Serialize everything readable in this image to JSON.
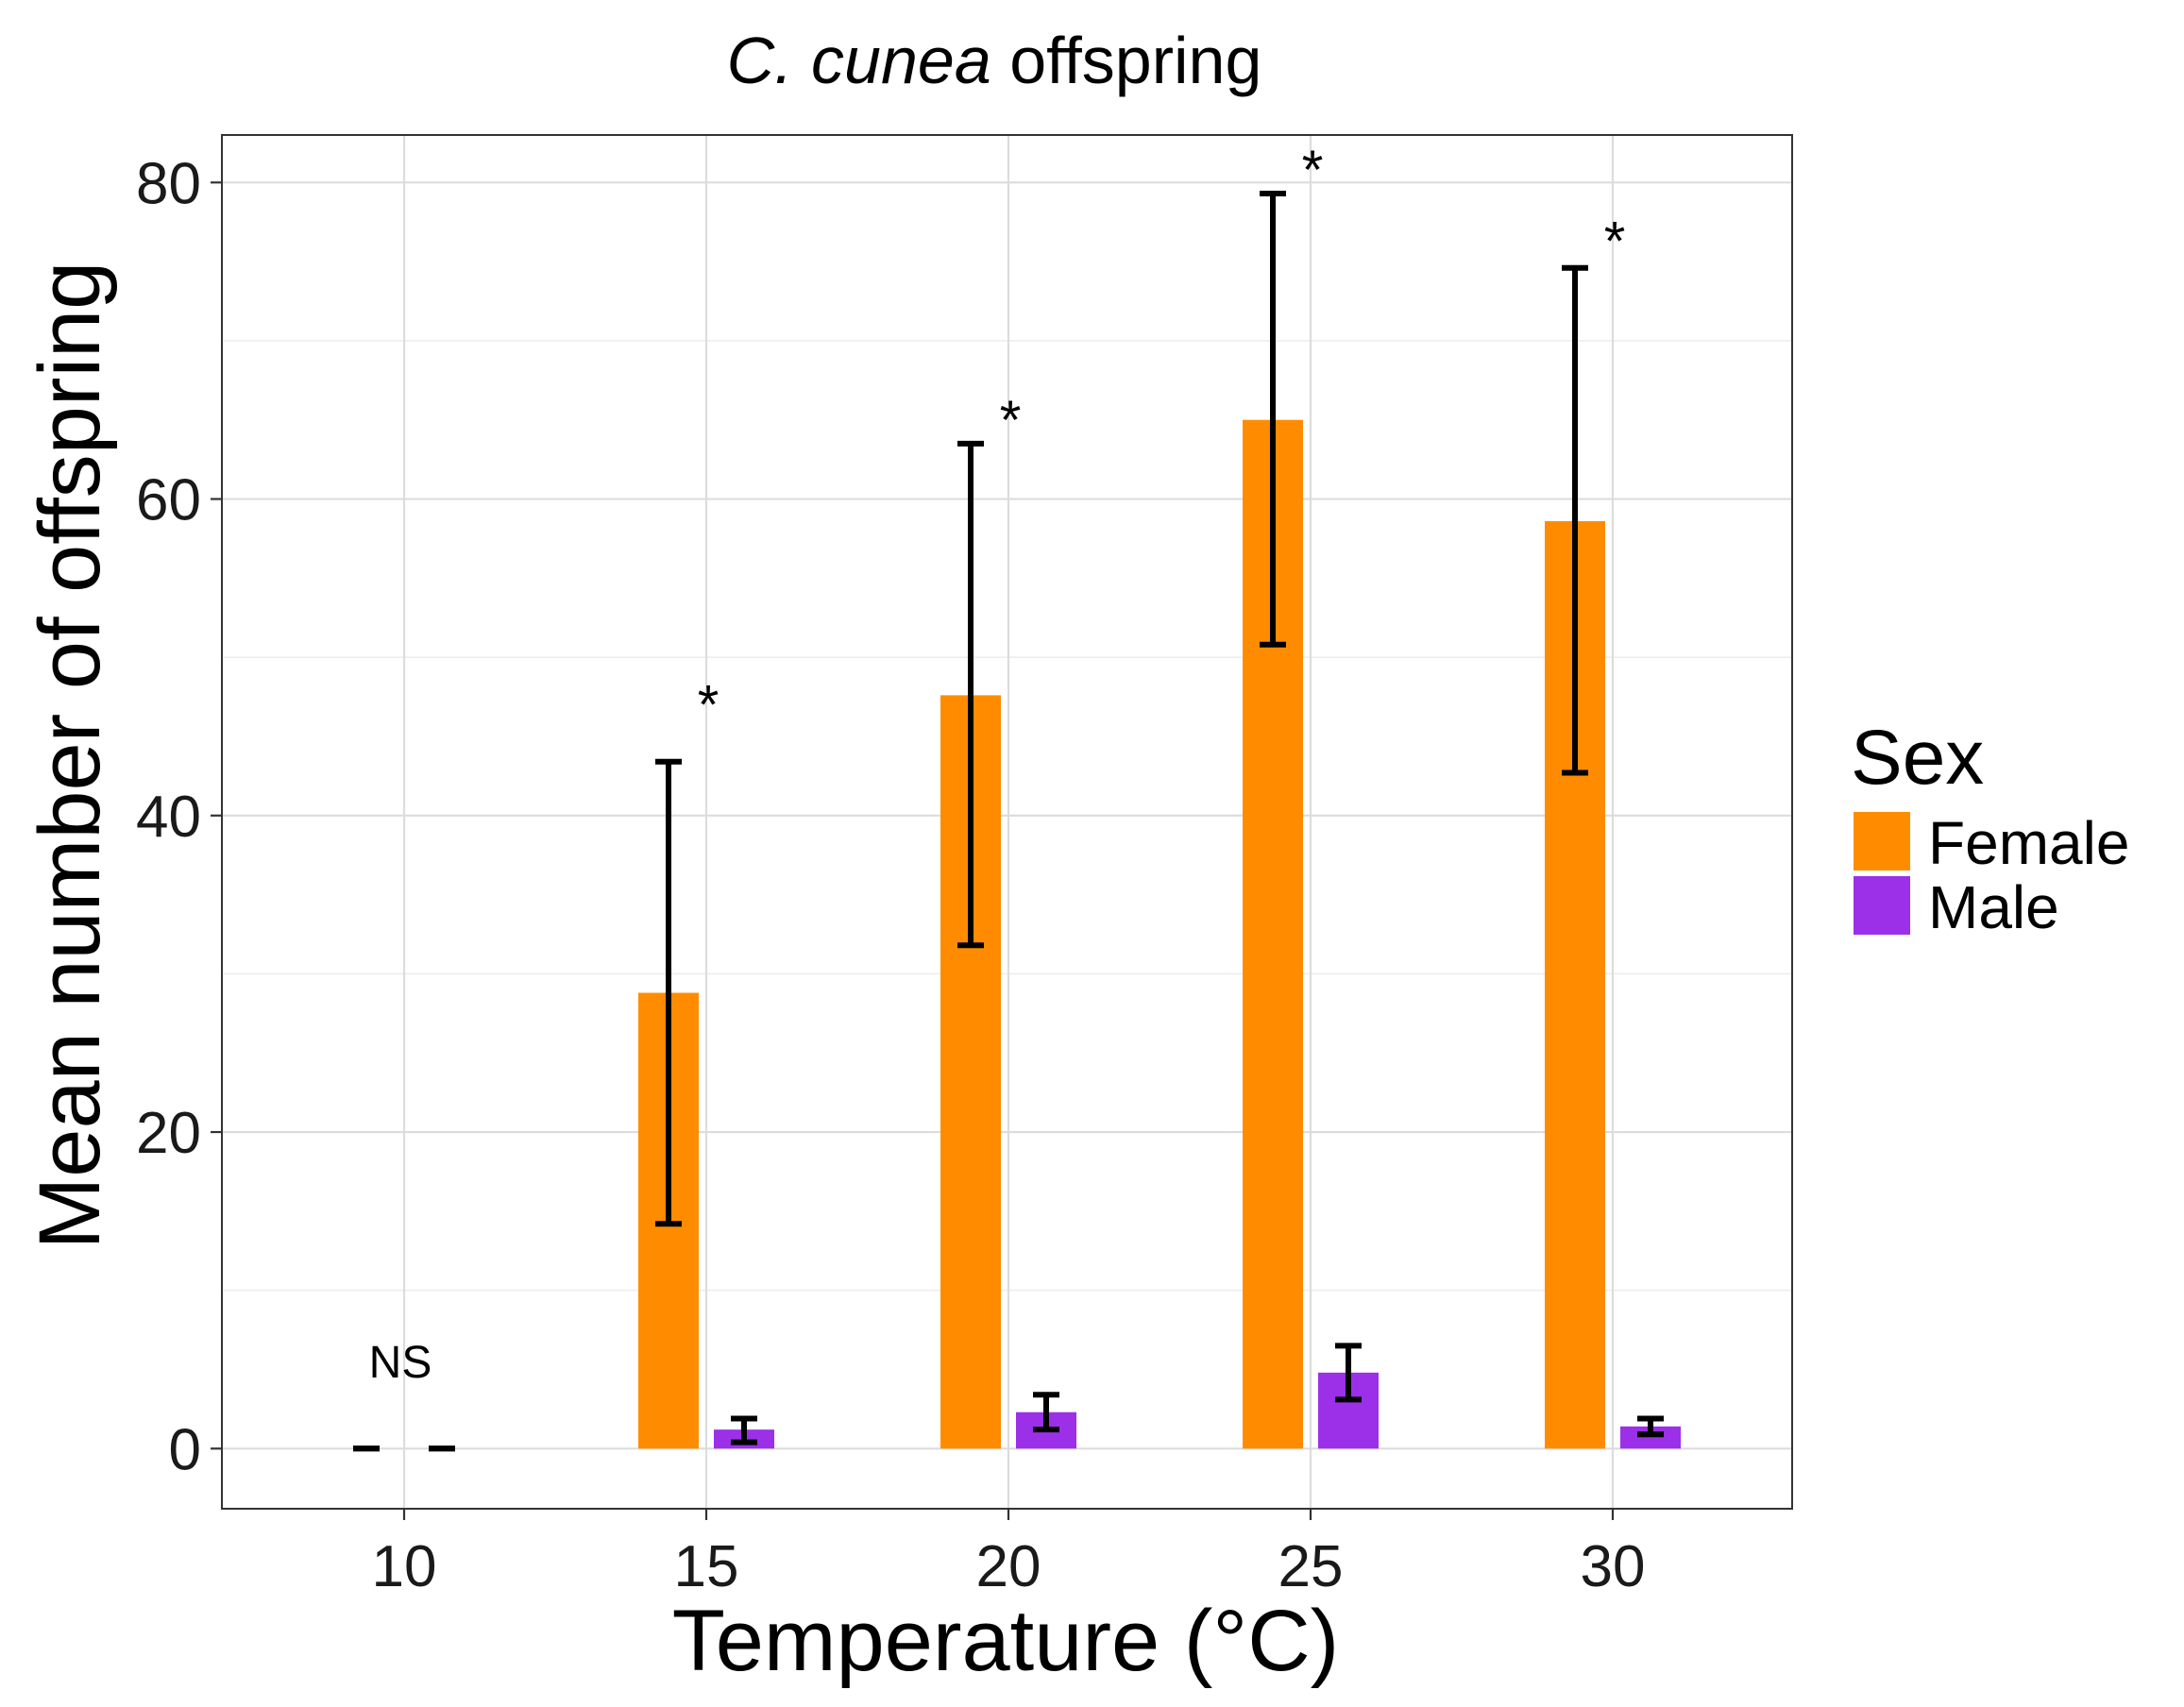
{
  "chart_data": {
    "type": "bar",
    "title": "C. cunea offspring",
    "title_parts": {
      "italic": "C. cunea",
      "rest": "offspring"
    },
    "xlabel": "Temperature (°C)",
    "ylabel": "Mean number of offspring",
    "categories": [
      "10",
      "15",
      "20",
      "25",
      "30"
    ],
    "x_tick_labels": [
      "10",
      "15",
      "20",
      "25",
      "30"
    ],
    "y_ticks": [
      0,
      20,
      40,
      60,
      80
    ],
    "y_tick_labels": [
      "0",
      "20",
      "40",
      "60",
      "80"
    ],
    "ylim": [
      -3.8,
      83
    ],
    "grid": true,
    "legend": {
      "title": "Sex",
      "position": "right",
      "entries": [
        "Female",
        "Male"
      ]
    },
    "series": [
      {
        "name": "Female",
        "color": "#FF8C00",
        "values": [
          0,
          28.8,
          47.6,
          65.0,
          58.6
        ],
        "error_low": [
          0,
          14.2,
          31.8,
          50.8,
          42.7
        ],
        "error_high": [
          0,
          43.4,
          63.5,
          79.3,
          74.6
        ]
      },
      {
        "name": "Male",
        "color": "#9B30E8",
        "values": [
          0,
          1.2,
          2.3,
          4.8,
          1.4
        ],
        "error_low": [
          0,
          0.4,
          1.2,
          3.1,
          0.9
        ],
        "error_high": [
          0,
          1.9,
          3.4,
          6.5,
          1.9
        ]
      }
    ],
    "annotations": [
      {
        "category": "10",
        "text": "NS",
        "y": 4.5
      },
      {
        "category": "15",
        "text": "*",
        "y": 45.8
      },
      {
        "category": "20",
        "text": "*",
        "y": 63.8
      },
      {
        "category": "25",
        "text": "*",
        "y": 79.6
      },
      {
        "category": "30",
        "text": "*",
        "y": 75.1
      }
    ]
  }
}
